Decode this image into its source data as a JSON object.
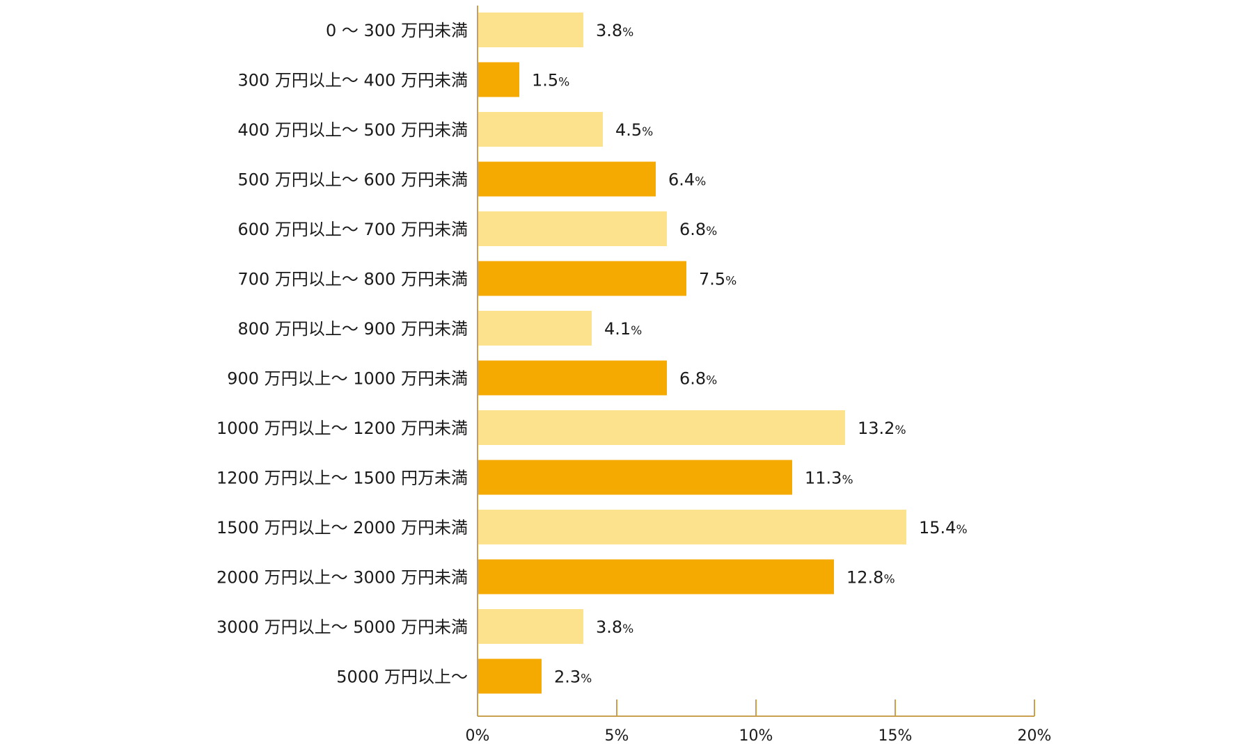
{
  "chart_data": {
    "type": "bar",
    "orientation": "horizontal",
    "categories": [
      "0 〜 300 万円未満",
      "300 万円以上〜 400 万円未満",
      "400 万円以上〜 500 万円未満",
      "500 万円以上〜 600 万円未満",
      "600 万円以上〜 700 万円未満",
      "700 万円以上〜 800 万円未満",
      "800 万円以上〜 900 万円未満",
      "900 万円以上〜 1000 万円未満",
      "1000 万円以上〜 1200 万円未満",
      "1200 万円以上〜 1500 円万未満",
      "1500 万円以上〜 2000 万円未満",
      "2000 万円以上〜 3000 万円未満",
      "3000 万円以上〜 5000 万円未満",
      "5000 万円以上〜"
    ],
    "values": [
      3.8,
      1.5,
      4.5,
      6.4,
      6.8,
      7.5,
      4.1,
      6.8,
      13.2,
      11.3,
      15.4,
      12.8,
      3.8,
      2.3
    ],
    "value_labels": [
      "3.8",
      "1.5",
      "4.5",
      "6.4",
      "6.8",
      "7.5",
      "4.1",
      "6.8",
      "13.2",
      "11.3",
      "15.4",
      "12.8",
      "3.8",
      "2.3"
    ],
    "value_unit": "%",
    "xlim": [
      0,
      20
    ],
    "xticks": [
      0,
      5,
      10,
      15,
      20
    ],
    "xtick_labels": [
      "0%",
      "5%",
      "10%",
      "15%",
      "20%"
    ],
    "title": "",
    "xlabel": "",
    "ylabel": "",
    "grid": false,
    "colors": {
      "bar_light": "#fde28e",
      "bar_dark": "#f4aa00",
      "axis": "#c8a050",
      "text": "#1a1a1a"
    }
  }
}
